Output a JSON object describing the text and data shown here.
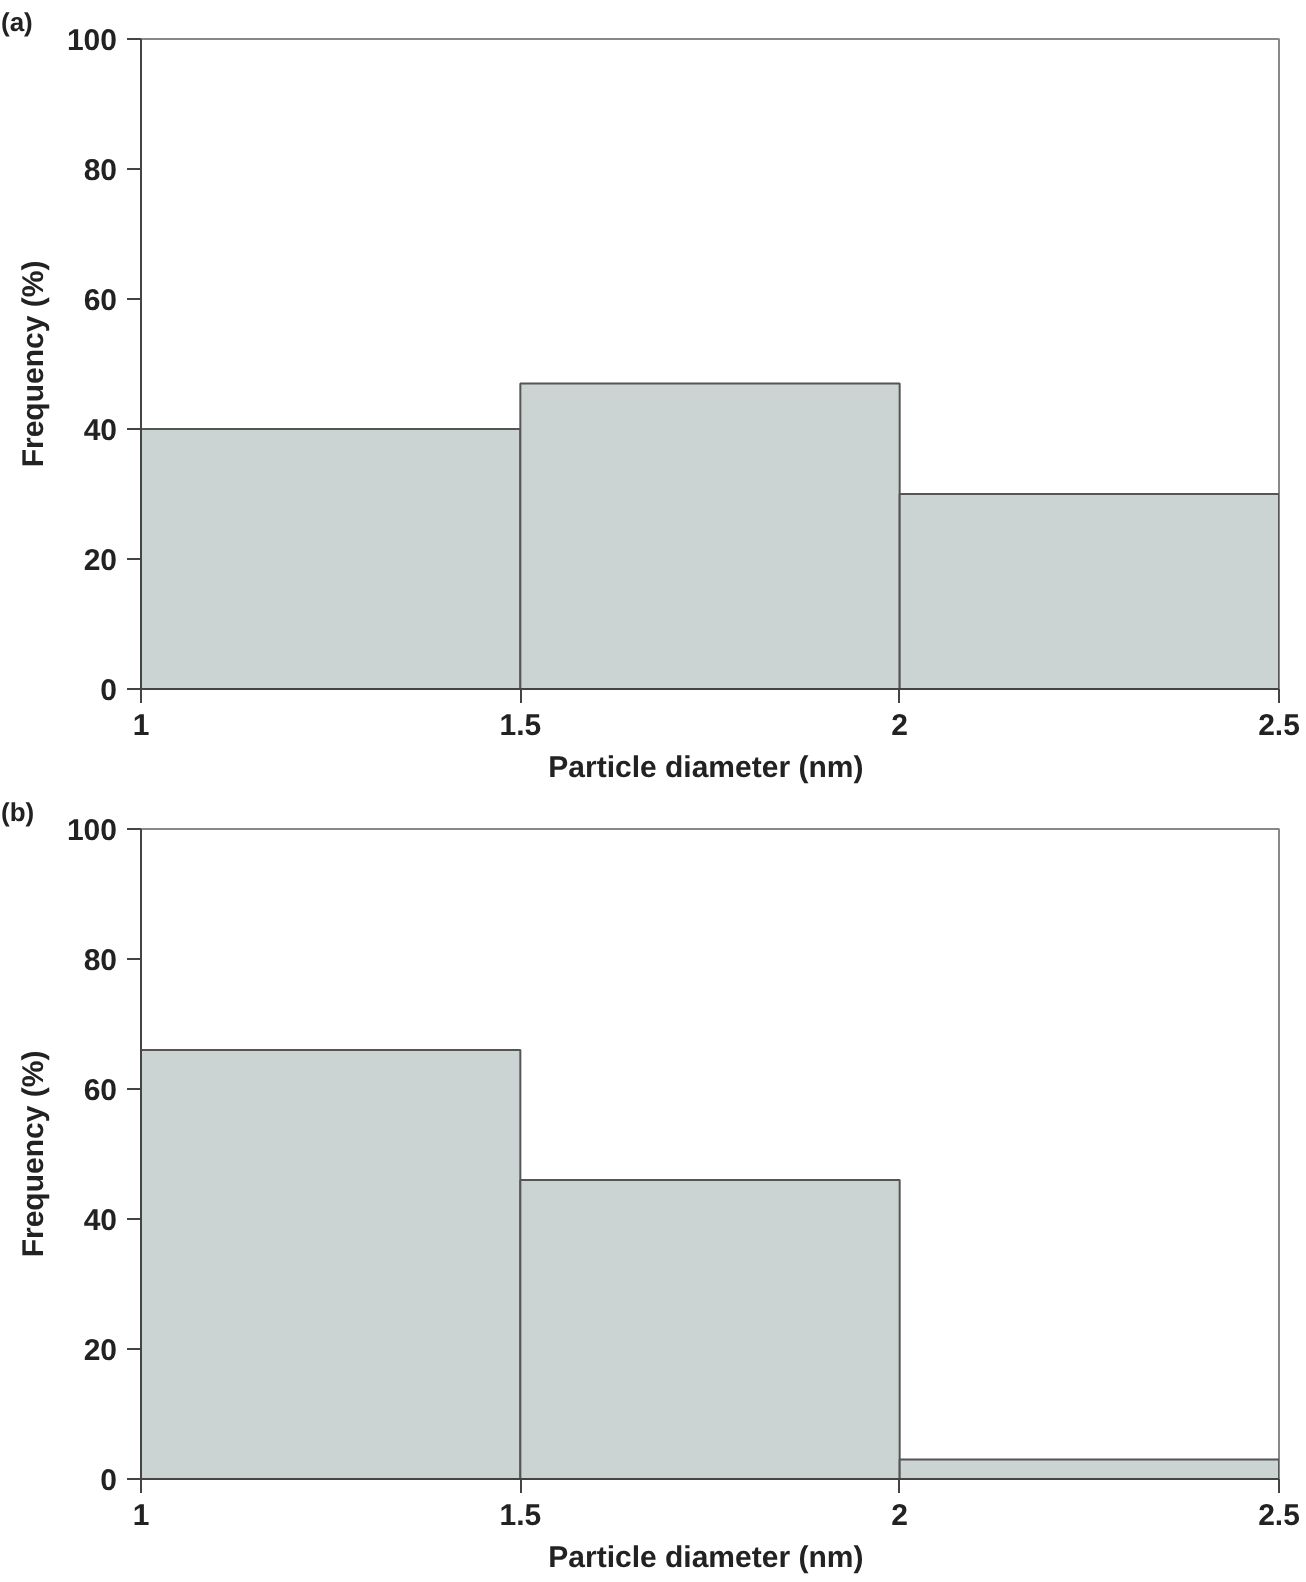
{
  "chart_data": [
    {
      "type": "histogram",
      "title": "(a)",
      "xlabel": "Particle diameter  (nm)",
      "ylabel": "Frequency (%)",
      "bins": [
        1,
        1.5,
        2,
        2.5
      ],
      "values": [
        40,
        47,
        30
      ],
      "color": "#ccd3d3",
      "xlim": [
        1,
        2.5
      ],
      "xticks": [
        1,
        1.5,
        2,
        2.5
      ],
      "ylim": [
        0,
        100
      ],
      "yticks": [
        0,
        20,
        40,
        60,
        80,
        100
      ],
      "grid": false
    },
    {
      "type": "histogram",
      "title": "(b)",
      "xlabel": "Particle diameter  (nm)",
      "ylabel": "Frequency (%)",
      "bins": [
        1,
        1.5,
        2,
        2.5
      ],
      "values": [
        66,
        46,
        3
      ],
      "color": "#ccd3d3",
      "xlim": [
        1,
        2.5
      ],
      "xticks": [
        1,
        1.5,
        2,
        2.5
      ],
      "ylim": [
        0,
        100
      ],
      "yticks": [
        0,
        20,
        40,
        60,
        80,
        100
      ],
      "grid": false
    }
  ]
}
